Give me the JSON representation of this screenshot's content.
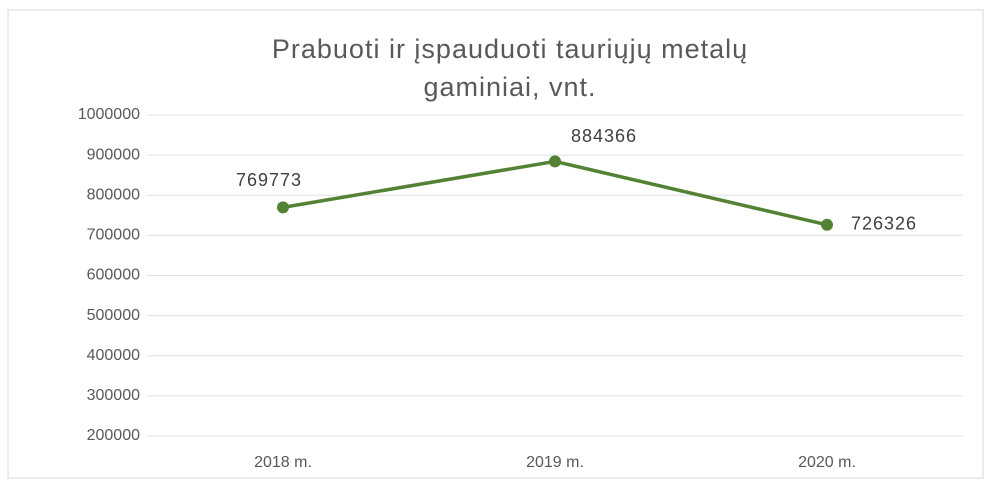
{
  "chart_data": {
    "type": "line",
    "title": "Prabuoti ir įspauduoti tauriųjų metalų gaminiai, vnt.",
    "categories": [
      "2018 m.",
      "2019 m.",
      "2020 m."
    ],
    "series": [
      {
        "name": "Prabuoti ir įspauduoti tauriųjų metalų gaminiai, vnt.",
        "color": "#548235",
        "values": [
          769773,
          884366,
          726326
        ]
      }
    ],
    "ylim": [
      200000,
      1000000
    ],
    "yticks": [
      200000,
      300000,
      400000,
      500000,
      600000,
      700000,
      800000,
      900000,
      1000000
    ],
    "grid": true,
    "legend": false
  }
}
